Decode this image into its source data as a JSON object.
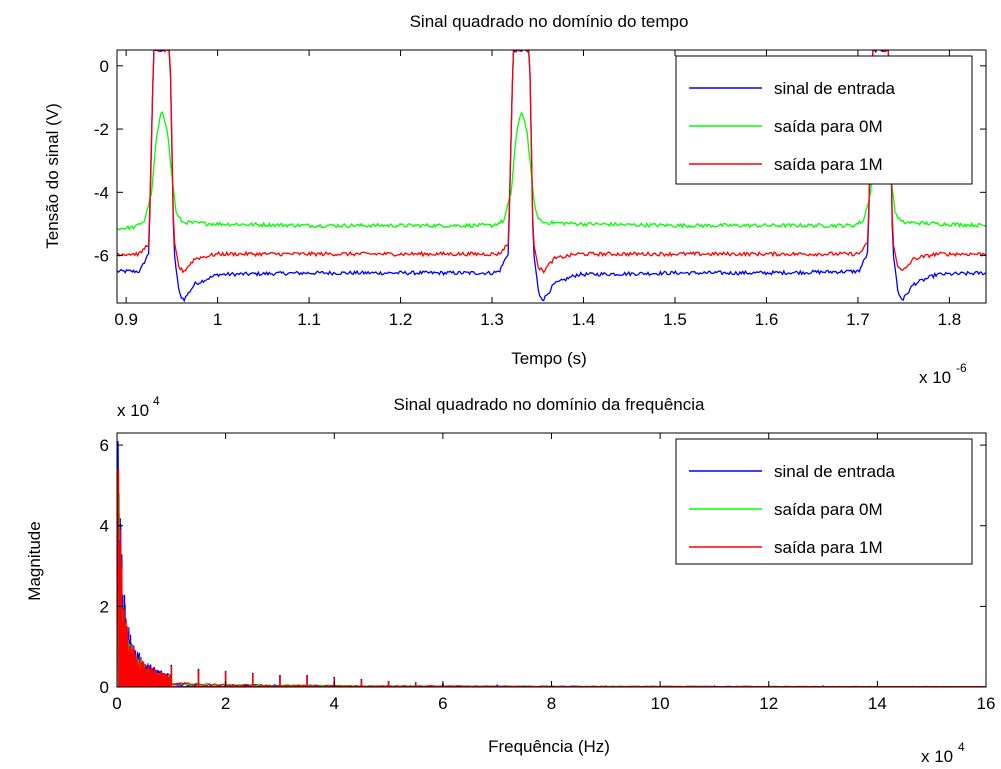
{
  "chart_data": [
    {
      "type": "line",
      "title": "Sinal quadrado no domínio do tempo",
      "xlabel": "Tempo (s)",
      "ylabel": "Tensão do sinal (V)",
      "x_exponent_label": {
        "base": "x 10",
        "exp": "-6"
      },
      "xlim": [
        0.89,
        1.84
      ],
      "ylim": [
        -7.5,
        0.5
      ],
      "x_ticks": [
        0.9,
        1.0,
        1.1,
        1.2,
        1.3,
        1.4,
        1.5,
        1.6,
        1.7,
        1.8
      ],
      "x_tick_labels": [
        "0.9",
        "1",
        "1.1",
        "1.2",
        "1.3",
        "1.4",
        "1.5",
        "1.6",
        "1.7",
        "1.8"
      ],
      "y_ticks": [
        0,
        -2,
        -4,
        -6
      ],
      "y_tick_labels": [
        "0",
        "-2",
        "-4",
        "-6"
      ],
      "legend_position": "top-right",
      "pulse_period": 0.393,
      "pulse_centers": [
        0.94,
        1.333,
        1.726
      ],
      "series": [
        {
          "name": "sinal de entrada",
          "color": "#0000ff",
          "points": [
            [
              0.89,
              -6.5
            ],
            [
              0.915,
              -6.5
            ],
            [
              0.925,
              -5.9
            ],
            [
              0.93,
              0.5
            ],
            [
              0.948,
              0.5
            ],
            [
              0.952,
              -5.8
            ],
            [
              0.958,
              -7.2
            ],
            [
              0.963,
              -7.4
            ],
            [
              0.975,
              -6.9
            ],
            [
              1.0,
              -6.6
            ],
            [
              1.1,
              -6.55
            ],
            [
              1.2,
              -6.55
            ],
            [
              1.3,
              -6.55
            ],
            [
              1.308,
              -6.5
            ],
            [
              1.318,
              -5.9
            ],
            [
              1.323,
              0.5
            ],
            [
              1.341,
              0.5
            ],
            [
              1.345,
              -5.8
            ],
            [
              1.351,
              -7.2
            ],
            [
              1.356,
              -7.4
            ],
            [
              1.368,
              -6.9
            ],
            [
              1.393,
              -6.6
            ],
            [
              1.5,
              -6.55
            ],
            [
              1.6,
              -6.55
            ],
            [
              1.701,
              -6.5
            ],
            [
              1.711,
              -5.9
            ],
            [
              1.716,
              0.5
            ],
            [
              1.734,
              0.5
            ],
            [
              1.738,
              -5.8
            ],
            [
              1.744,
              -7.2
            ],
            [
              1.749,
              -7.4
            ],
            [
              1.761,
              -6.9
            ],
            [
              1.786,
              -6.6
            ],
            [
              1.84,
              -6.55
            ]
          ]
        },
        {
          "name": "saída para 0M",
          "color": "#00ff00",
          "points": [
            [
              0.89,
              -5.15
            ],
            [
              0.91,
              -5.1
            ],
            [
              0.92,
              -4.9
            ],
            [
              0.928,
              -4.0
            ],
            [
              0.933,
              -2.3
            ],
            [
              0.939,
              -1.4
            ],
            [
              0.945,
              -2.0
            ],
            [
              0.95,
              -3.5
            ],
            [
              0.955,
              -4.7
            ],
            [
              0.962,
              -4.95
            ],
            [
              1.0,
              -5.0
            ],
            [
              1.1,
              -5.05
            ],
            [
              1.2,
              -5.05
            ],
            [
              1.3,
              -5.05
            ],
            [
              1.305,
              -5.0
            ],
            [
              1.313,
              -4.9
            ],
            [
              1.321,
              -4.0
            ],
            [
              1.326,
              -2.3
            ],
            [
              1.332,
              -1.4
            ],
            [
              1.338,
              -2.0
            ],
            [
              1.343,
              -3.5
            ],
            [
              1.348,
              -4.7
            ],
            [
              1.355,
              -4.95
            ],
            [
              1.4,
              -5.0
            ],
            [
              1.5,
              -5.05
            ],
            [
              1.6,
              -5.05
            ],
            [
              1.695,
              -5.05
            ],
            [
              1.706,
              -4.9
            ],
            [
              1.714,
              -4.0
            ],
            [
              1.719,
              -2.3
            ],
            [
              1.725,
              -1.4
            ],
            [
              1.731,
              -2.0
            ],
            [
              1.736,
              -3.5
            ],
            [
              1.741,
              -4.7
            ],
            [
              1.748,
              -4.95
            ],
            [
              1.84,
              -5.05
            ]
          ]
        },
        {
          "name": "saída para 1M",
          "color": "#ff0000",
          "points": [
            [
              0.89,
              -5.95
            ],
            [
              0.915,
              -5.95
            ],
            [
              0.925,
              -5.6
            ],
            [
              0.93,
              0.5
            ],
            [
              0.948,
              0.5
            ],
            [
              0.952,
              -5.5
            ],
            [
              0.958,
              -6.4
            ],
            [
              0.963,
              -6.5
            ],
            [
              0.975,
              -6.1
            ],
            [
              1.0,
              -5.95
            ],
            [
              1.1,
              -5.95
            ],
            [
              1.2,
              -5.95
            ],
            [
              1.3,
              -5.95
            ],
            [
              1.308,
              -5.95
            ],
            [
              1.318,
              -5.6
            ],
            [
              1.323,
              0.5
            ],
            [
              1.341,
              0.5
            ],
            [
              1.345,
              -5.5
            ],
            [
              1.351,
              -6.4
            ],
            [
              1.356,
              -6.5
            ],
            [
              1.368,
              -6.1
            ],
            [
              1.393,
              -5.95
            ],
            [
              1.5,
              -5.95
            ],
            [
              1.6,
              -5.95
            ],
            [
              1.701,
              -5.95
            ],
            [
              1.711,
              -5.6
            ],
            [
              1.716,
              0.5
            ],
            [
              1.734,
              0.5
            ],
            [
              1.738,
              -5.5
            ],
            [
              1.744,
              -6.4
            ],
            [
              1.749,
              -6.5
            ],
            [
              1.761,
              -6.1
            ],
            [
              1.786,
              -5.95
            ],
            [
              1.84,
              -5.95
            ]
          ]
        }
      ]
    },
    {
      "type": "line",
      "title": "Sinal quadrado no domínio da frequência",
      "xlabel": "Frequência (Hz)",
      "ylabel": "Magnitude",
      "x_exponent_label": {
        "base": "x 10",
        "exp": "4"
      },
      "y_exponent_label": {
        "base": "x 10",
        "exp": "4"
      },
      "xlim": [
        0,
        16
      ],
      "ylim": [
        0,
        6.3
      ],
      "x_ticks": [
        0,
        2,
        4,
        6,
        8,
        10,
        12,
        14,
        16
      ],
      "x_tick_labels": [
        "0",
        "2",
        "4",
        "6",
        "8",
        "10",
        "12",
        "14",
        "16"
      ],
      "y_ticks": [
        0,
        2,
        4,
        6
      ],
      "y_tick_labels": [
        "0",
        "2",
        "4",
        "6"
      ],
      "legend_position": "top-right",
      "series": [
        {
          "name": "sinal de entrada",
          "color": "#0000ff",
          "peak": 6.1,
          "harmonics": [
            [
              0.5,
              0.4
            ],
            [
              1.0,
              0.55
            ],
            [
              1.5,
              0.45
            ],
            [
              2.0,
              0.4
            ],
            [
              2.5,
              0.35
            ],
            [
              3.0,
              0.3
            ],
            [
              3.5,
              0.3
            ],
            [
              4.0,
              0.25
            ],
            [
              4.5,
              0.2
            ],
            [
              5.0,
              0.15
            ],
            [
              5.5,
              0.12
            ],
            [
              6.0,
              0.1
            ],
            [
              7.0,
              0.06
            ],
            [
              8.0,
              0.05
            ],
            [
              9.0,
              0.04
            ],
            [
              10.0,
              0.04
            ],
            [
              11.0,
              0.04
            ],
            [
              12.0,
              0.04
            ],
            [
              13.0,
              0.04
            ]
          ]
        },
        {
          "name": "saída para 0M",
          "color": "#00ff00",
          "peak": 4.9,
          "harmonics": [
            [
              0.5,
              0.3
            ],
            [
              1.0,
              0.35
            ],
            [
              1.5,
              0.3
            ],
            [
              2.0,
              0.25
            ],
            [
              2.5,
              0.2
            ],
            [
              3.0,
              0.15
            ],
            [
              3.5,
              0.12
            ],
            [
              4.0,
              0.1
            ]
          ]
        },
        {
          "name": "saída para 1M",
          "color": "#ff0000",
          "peak": 5.4,
          "harmonics": [
            [
              0.5,
              0.38
            ],
            [
              1.0,
              0.5
            ],
            [
              1.5,
              0.42
            ],
            [
              2.0,
              0.38
            ],
            [
              2.5,
              0.33
            ],
            [
              3.0,
              0.28
            ],
            [
              3.5,
              0.28
            ],
            [
              4.0,
              0.22
            ],
            [
              4.5,
              0.18
            ],
            [
              5.0,
              0.14
            ],
            [
              5.5,
              0.1
            ],
            [
              6.0,
              0.08
            ]
          ]
        }
      ]
    }
  ]
}
